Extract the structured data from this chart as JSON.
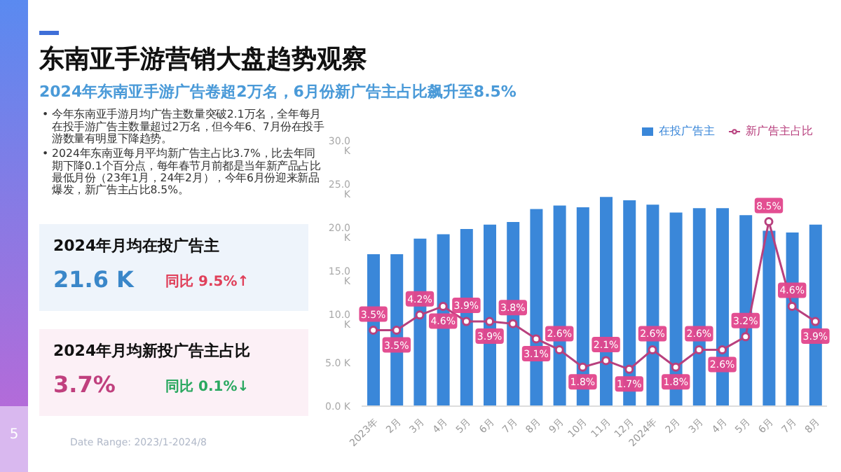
{
  "chart_data": {
    "type": "bar",
    "title": "东南亚手游营销大盘趋势观察",
    "subtitle": "2024年东南亚手游广告卷超2万名，6月份新广告主占比飙升至8.5%",
    "categories": [
      "2023年",
      "2月",
      "3月",
      "4月",
      "5月",
      "6月",
      "7月",
      "8月",
      "9月",
      "10月",
      "11月",
      "12月",
      "2024年",
      "2月",
      "3月",
      "4月",
      "5月",
      "6月",
      "7月",
      "8月"
    ],
    "series": [
      {
        "name": "在投广告主",
        "color": "#3a87d9",
        "values": [
          17.5,
          17.5,
          19.3,
          19.8,
          20.4,
          20.9,
          21.2,
          22.7,
          23.1,
          22.9,
          24.1,
          23.7,
          23.2,
          22.3,
          22.8,
          22.8,
          22.0,
          20.2,
          20.0,
          20.9
        ]
      },
      {
        "name": "新广告主占比",
        "type": "line",
        "axis": "y2",
        "color": "#b8407e",
        "values": [
          3.5,
          3.5,
          4.2,
          4.6,
          3.9,
          3.9,
          3.8,
          3.1,
          2.6,
          1.8,
          2.1,
          1.7,
          2.6,
          1.8,
          2.6,
          2.6,
          3.2,
          8.5,
          4.6,
          3.9
        ],
        "value_labels": [
          "3.5%",
          "3.5%",
          "4.2%",
          "4.6%",
          "3.9%",
          "3.9%",
          "3.8%",
          "3.1%",
          "2.6%",
          "1.8%",
          "2.1%",
          "1.7%",
          "2.6%",
          "1.8%",
          "2.6%",
          "2.6%",
          "3.2%",
          "8.5%",
          "4.6%",
          "3.9%"
        ]
      }
    ],
    "ylim": [
      0,
      30
    ],
    "yticks": [
      {
        "value": 0,
        "label": "0.0 K"
      },
      {
        "value": 5,
        "label": "5.0 K"
      },
      {
        "value": 10,
        "label": "10.0 K"
      },
      {
        "value": 15,
        "label": "15.0 K"
      },
      {
        "value": 20,
        "label": "20.0 K"
      },
      {
        "value": 25,
        "label": "25.0 K"
      },
      {
        "value": 30,
        "label": "30.0 K"
      }
    ],
    "tick_labels": "xy",
    "grid": false,
    "legend": "top right",
    "marker": "circle",
    "annotations": [
      "• 今年东南亚手游月均广告主数量突破2.1万名，全年每月在投手游广告主数量超过2万名，但今年6、7月份在投手游数量有明显下降趋势。",
      "• 2024年东南亚每月平均新广告主占比3.7%，比去年同期下降0.1个百分点，每年春节月前都是当年新产品占比最低月份（23年1月，24年2月），今年6月份迎来新品爆发，新广告主占比8.5%。",
      "2024年月均在投广告主",
      "21.6 K",
      "同比 9.5%↑",
      "2024年月均新投广告主占比",
      "3.7%",
      "同比 0.1%↓",
      "Date Range: 2023/1-2024/8",
      "5"
    ]
  }
}
